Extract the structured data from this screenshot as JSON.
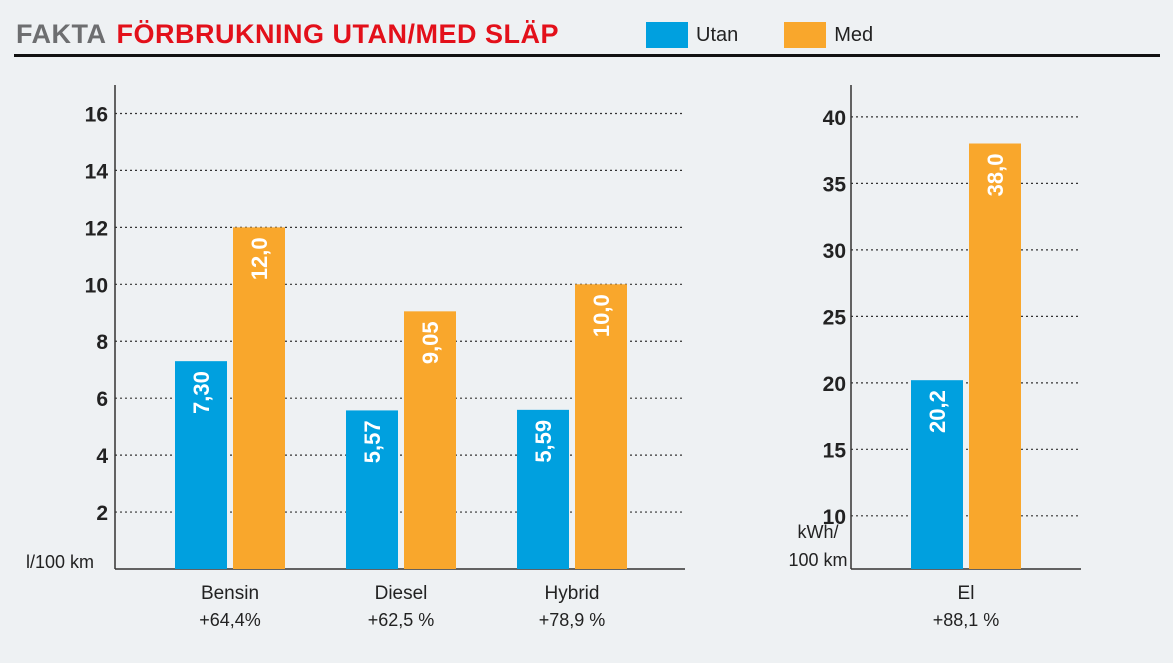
{
  "header": {
    "prefix": "FAKTA",
    "title": "FÖRBRUKNING UTAN/MED SLÄP"
  },
  "legend": [
    {
      "label": "Utan",
      "color": "#00a0df"
    },
    {
      "label": "Med",
      "color": "#f9a72c"
    }
  ],
  "colors": {
    "utan": "#00a0df",
    "med": "#f9a72c",
    "title_red": "#e3101a",
    "prefix_gray": "#6d6e70"
  },
  "chart_data": [
    {
      "type": "bar",
      "ylabel": "l/100 km",
      "ylim": [
        0,
        17
      ],
      "yticks": [
        2,
        4,
        6,
        8,
        10,
        12,
        14,
        16
      ],
      "ytick_labels": [
        "2",
        "4",
        "6",
        "8",
        "10",
        "12",
        "14",
        "16"
      ],
      "grid": true,
      "categories": [
        "Bensin",
        "Diesel",
        "Hybrid"
      ],
      "category_notes": [
        "+64,4%",
        "+62,5 %",
        "+78,9 %"
      ],
      "series": [
        {
          "name": "Utan",
          "values": [
            7.3,
            5.57,
            5.59
          ],
          "labels": [
            "7,30",
            "5,57",
            "5,59"
          ]
        },
        {
          "name": "Med",
          "values": [
            12.0,
            9.05,
            10.0
          ],
          "labels": [
            "12,0",
            "9,05",
            "10,0"
          ]
        }
      ]
    },
    {
      "type": "bar",
      "ylabel": [
        "kWh/",
        "100 km"
      ],
      "ylim": [
        6,
        42.4
      ],
      "yticks": [
        10,
        15,
        20,
        25,
        30,
        35,
        40
      ],
      "ytick_labels": [
        "10",
        "15",
        "20",
        "25",
        "30",
        "35",
        "40"
      ],
      "grid": true,
      "categories": [
        "El"
      ],
      "category_notes": [
        "+88,1 %"
      ],
      "series": [
        {
          "name": "Utan",
          "values": [
            20.2
          ],
          "labels": [
            "20,2"
          ]
        },
        {
          "name": "Med",
          "values": [
            38.0
          ],
          "labels": [
            "38,0"
          ]
        }
      ]
    }
  ]
}
